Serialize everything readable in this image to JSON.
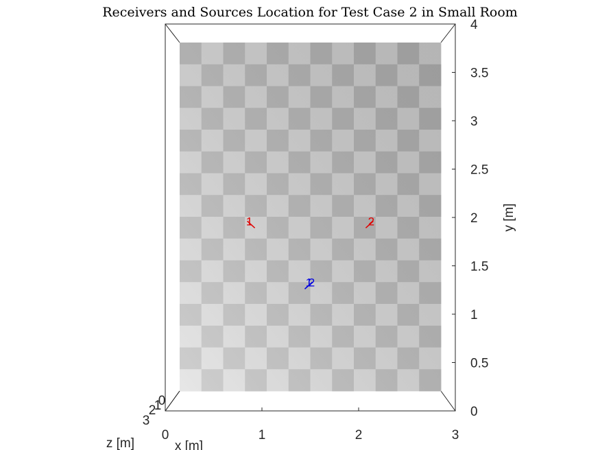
{
  "chart_data": {
    "type": "scatter",
    "title": "Receivers and Sources Location for Test Case 2 in Small Room",
    "xlabel": "x [m]",
    "ylabel": "y [m]",
    "zlabel": "z [m]",
    "xlim": [
      0,
      3
    ],
    "ylim": [
      0,
      4
    ],
    "x_ticks": [
      "0",
      "1",
      "2",
      "3"
    ],
    "y_ticks": [
      "0",
      "0.5",
      "1",
      "1.5",
      "2",
      "2.5",
      "3",
      "3.5",
      "4"
    ],
    "z_ticks": [
      "0",
      "1",
      "2",
      "3"
    ],
    "floor": "checkerboard",
    "series": [
      {
        "name": "",
        "color": "#e00000",
        "points": [
          {
            "label": "1",
            "x": 0.8,
            "y": 1.95
          },
          {
            "label": "2",
            "x": 2.2,
            "y": 1.95
          }
        ]
      },
      {
        "name": "",
        "color": "#0000e0",
        "points": [
          {
            "label": "1",
            "x": 1.5,
            "y": 1.25
          },
          {
            "label": "2",
            "x": 1.5,
            "y": 1.25
          }
        ]
      }
    ]
  }
}
